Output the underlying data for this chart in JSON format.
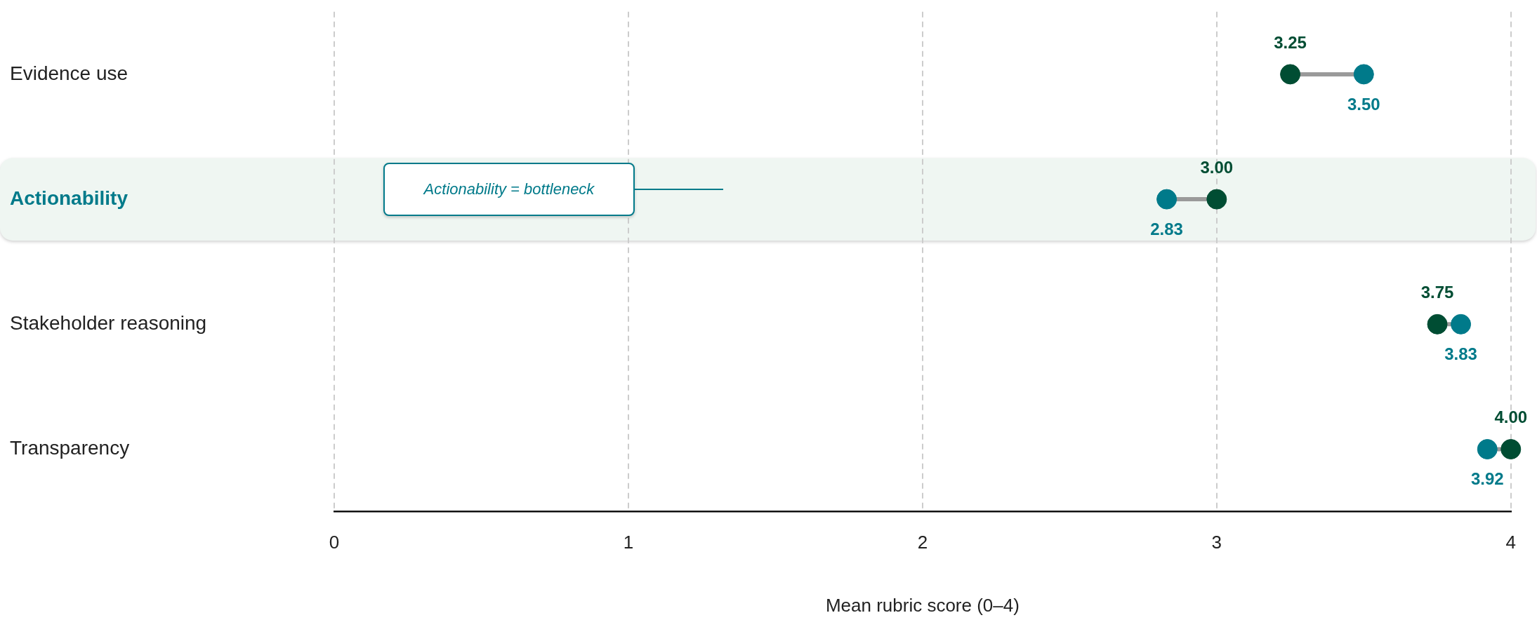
{
  "chart_data": {
    "type": "scatter",
    "orientation": "horizontal",
    "categories": [
      "Evidence use",
      "Actionability",
      "Stakeholder reasoning",
      "Transparency"
    ],
    "series": [
      {
        "color": "#004d33",
        "values": [
          3.25,
          3.0,
          3.75,
          4.0
        ],
        "value_labels": [
          "3.25",
          "3.00",
          "3.75",
          "4.00"
        ]
      },
      {
        "color": "#007a8a",
        "values": [
          3.5,
          2.83,
          3.83,
          3.92
        ],
        "value_labels": [
          "3.50",
          "2.83",
          "3.83",
          "3.92"
        ]
      }
    ],
    "xlim": [
      0,
      4
    ],
    "xticks": [
      0,
      1,
      2,
      3,
      4
    ],
    "xlabel": "Mean rubric score (0–4)",
    "grid": "x",
    "legend": false,
    "marker": "circle",
    "annotations": [
      "Actionability = bottleneck"
    ],
    "bands": [
      {
        "axis": "y",
        "from": "Actionability",
        "to": "Actionability",
        "color": "#eff6f2"
      }
    ]
  }
}
